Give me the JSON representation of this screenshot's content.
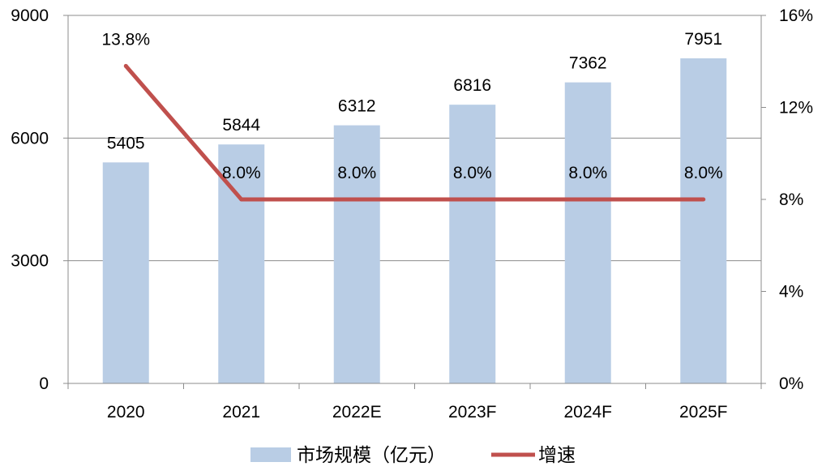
{
  "chart_data": {
    "type": "bar",
    "categories": [
      "2020",
      "2021",
      "2022E",
      "2023F",
      "2024F",
      "2025F"
    ],
    "series": [
      {
        "name": "市场规模（亿元）",
        "type": "bar",
        "axis": "left",
        "values": [
          5405,
          5844,
          6312,
          6816,
          7362,
          7951
        ],
        "labels": [
          "5405",
          "5844",
          "6312",
          "6816",
          "7362",
          "7951"
        ],
        "color": "#B9CDE5"
      },
      {
        "name": "增速",
        "type": "line",
        "axis": "right",
        "values": [
          13.8,
          8.0,
          8.0,
          8.0,
          8.0,
          8.0
        ],
        "labels": [
          "13.8%",
          "8.0%",
          "8.0%",
          "8.0%",
          "8.0%",
          "8.0%"
        ],
        "color": "#C0504D"
      }
    ],
    "y_left": {
      "ylim": [
        0,
        9000
      ],
      "ticks": [
        0,
        3000,
        6000,
        9000
      ],
      "tick_labels": [
        "0",
        "3000",
        "6000",
        "9000"
      ]
    },
    "y_right": {
      "ylim": [
        0,
        16
      ],
      "ticks": [
        0,
        4,
        8,
        12,
        16
      ],
      "tick_labels": [
        "0%",
        "4%",
        "8%",
        "12%",
        "16%"
      ]
    },
    "grid": true,
    "legend_position": "bottom"
  }
}
